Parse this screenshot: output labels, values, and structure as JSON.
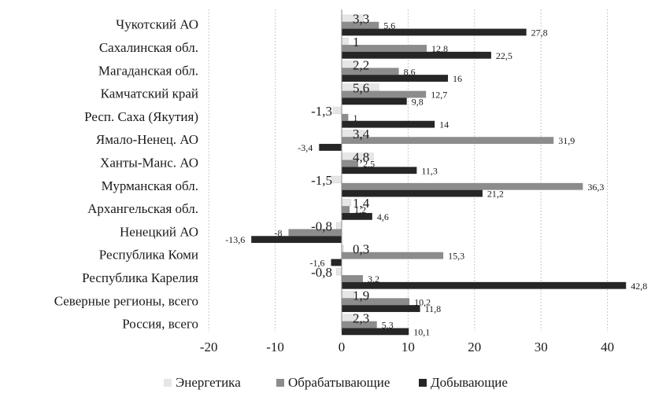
{
  "chart_data": {
    "type": "bar",
    "orientation": "horizontal",
    "categories": [
      "Чукотский АО",
      "Сахалинская обл.",
      "Магаданская обл.",
      "Камчатский край",
      "Респ. Саха (Якутия)",
      "Ямало-Ненец. АО",
      "Ханты-Манс. АО",
      "Мурманская обл.",
      "Архангельская обл.",
      "Ненецкий АО",
      "Республика Коми",
      "Республика Карелия",
      "Северные регионы, всего",
      "Россия, всего"
    ],
    "series": [
      {
        "name": "Энергетика",
        "color": "#d9d9d9",
        "values": [
          3.3,
          1,
          2.2,
          5.6,
          -1.3,
          3.4,
          4.8,
          -1.5,
          1.4,
          -0.8,
          0.3,
          -0.8,
          1.9,
          2.3
        ],
        "labels": [
          "3,3",
          "1",
          "2,2",
          "5,6",
          "-1,3",
          "3,4",
          "4,8",
          "-1,5",
          "1,4",
          "-0,8",
          "0,3",
          "-0,8",
          "1,9",
          "2,3"
        ]
      },
      {
        "name": "Обрабатывающие",
        "color": "#8c8c8c",
        "values": [
          5.6,
          12.8,
          8.6,
          12.7,
          1,
          31.9,
          2.5,
          36.3,
          1.2,
          -8,
          15.3,
          3.2,
          10.2,
          5.3
        ],
        "labels": [
          "5,6",
          "12,8",
          "8,6",
          "12,7",
          "1",
          "31,9",
          "2,5",
          "36,3",
          "1,2",
          "-8",
          "15,3",
          "3,2",
          "10,2",
          "5,3"
        ]
      },
      {
        "name": "Добывающие",
        "color": "#262626",
        "values": [
          27.8,
          22.5,
          16,
          9.8,
          14,
          -3.4,
          11.3,
          21.2,
          4.6,
          -13.6,
          -1.6,
          42.8,
          11.8,
          10.1
        ],
        "labels": [
          "27,8",
          "22,5",
          "16",
          "9,8",
          "14",
          "-3,4",
          "11,3",
          "21,2",
          "4,6",
          "-13,6",
          "-1,6",
          "42,8",
          "11,8",
          "10,1"
        ]
      }
    ],
    "xlim": [
      -20,
      45
    ],
    "ticks": [
      "-20",
      "-10",
      "0",
      "10",
      "20",
      "30",
      "40"
    ],
    "tick_values": [
      -20,
      -10,
      0,
      10,
      20,
      30,
      40
    ],
    "grid": "vertical dashed",
    "legend": "bottom",
    "title": "",
    "xlabel": "",
    "ylabel": ""
  }
}
